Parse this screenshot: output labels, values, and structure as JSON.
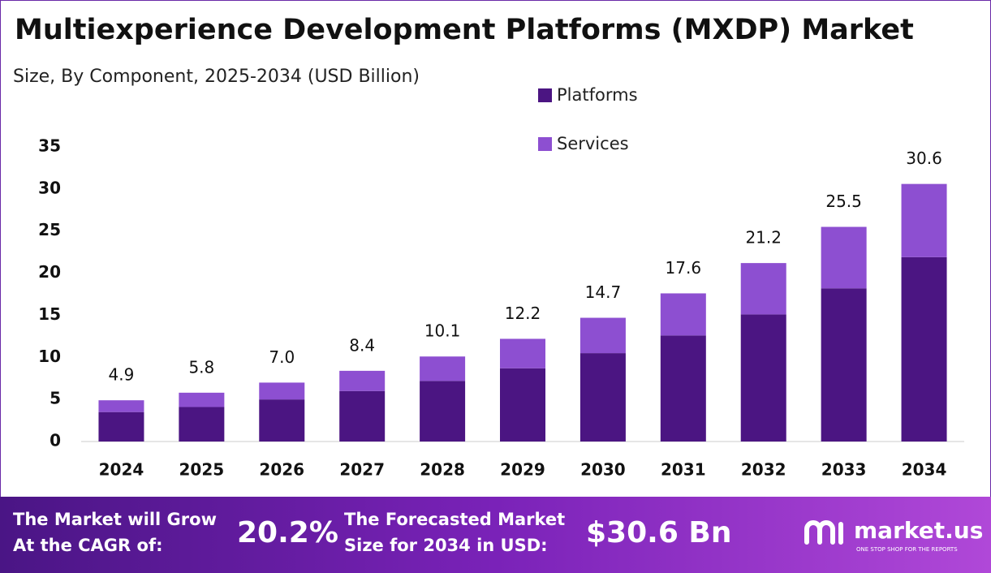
{
  "chart_data": {
    "type": "stacked-bar",
    "title": "Multiexperience Development Platforms (MXDP) Market",
    "subtitle": "Size, By Component, 2025-2034 (USD Billion)",
    "categories": [
      "2024",
      "2025",
      "2026",
      "2027",
      "2028",
      "2029",
      "2030",
      "2031",
      "2032",
      "2033",
      "2034"
    ],
    "series": [
      {
        "name": "Platforms",
        "color": "#4b1582",
        "values": [
          3.5,
          4.1,
          5.0,
          6.0,
          7.2,
          8.7,
          10.5,
          12.6,
          15.1,
          18.2,
          21.9
        ]
      },
      {
        "name": "Services",
        "color": "#8d4fd1",
        "values": [
          1.4,
          1.7,
          2.0,
          2.4,
          2.9,
          3.5,
          4.2,
          5.0,
          6.1,
          7.3,
          8.7
        ]
      }
    ],
    "totals": [
      4.9,
      5.8,
      7.0,
      8.4,
      10.1,
      12.2,
      14.7,
      17.6,
      21.2,
      25.5,
      30.6
    ],
    "value_labels": [
      "4.9",
      "5.8",
      "7.0",
      "8.4",
      "10.1",
      "12.2",
      "14.7",
      "17.6",
      "21.2",
      "25.5",
      "30.6"
    ],
    "ylim": [
      0,
      35
    ],
    "yticks": [
      0,
      5,
      10,
      15,
      20,
      25,
      30,
      35
    ],
    "grid": false
  },
  "footer": {
    "cagr_text": "The Market will Grow At the CAGR of:",
    "cagr_value": "20.2%",
    "forecast_text": "The Forecasted Market Size for 2034 in USD:",
    "forecast_value": "$30.6 Bn",
    "brand": "market.us",
    "tagline": "ONE STOP SHOP FOR THE REPORTS"
  }
}
